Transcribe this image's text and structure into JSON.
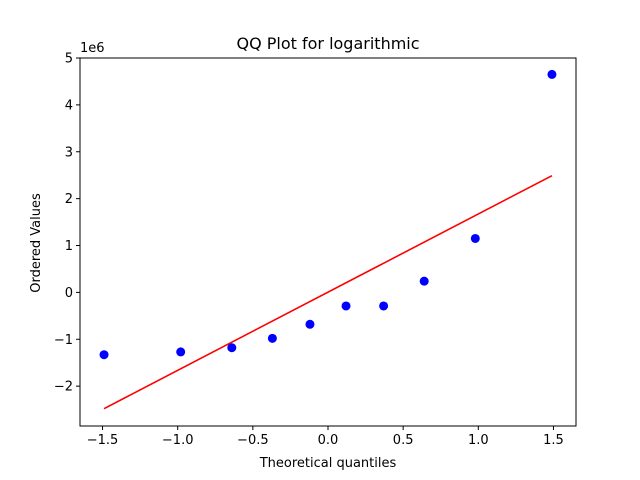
{
  "chart_data": {
    "type": "scatter",
    "title": "QQ Plot for logarithmic",
    "xlabel": "Theoretical quantiles",
    "ylabel": "Ordered Values",
    "y_offset_label": "1e6",
    "xlim": [
      -1.65,
      1.65
    ],
    "ylim": [
      -2.85,
      5.0
    ],
    "x_ticks": [
      -1.5,
      -1.0,
      -0.5,
      0.0,
      0.5,
      1.0,
      1.5
    ],
    "x_tick_labels": [
      "−1.5",
      "−1.0",
      "−0.5",
      "0.0",
      "0.5",
      "1.0",
      "1.5"
    ],
    "y_ticks": [
      -2,
      -1,
      0,
      1,
      2,
      3,
      4,
      5
    ],
    "y_tick_labels": [
      "−2",
      "−1",
      "0",
      "1",
      "2",
      "3",
      "4",
      "5"
    ],
    "grid": false,
    "series": [
      {
        "kind": "points",
        "color": "#0000ff",
        "x": [
          -1.49,
          -0.98,
          -0.64,
          -0.37,
          -0.12,
          0.12,
          0.37,
          0.64,
          0.98,
          1.49
        ],
        "y": [
          -1.33,
          -1.27,
          -1.18,
          -0.98,
          -0.68,
          -0.29,
          -0.29,
          0.24,
          1.15,
          4.65
        ]
      },
      {
        "kind": "fit-line",
        "color": "#ff0000",
        "x": [
          -1.49,
          1.49
        ],
        "y": [
          -2.48,
          2.49
        ]
      }
    ]
  }
}
